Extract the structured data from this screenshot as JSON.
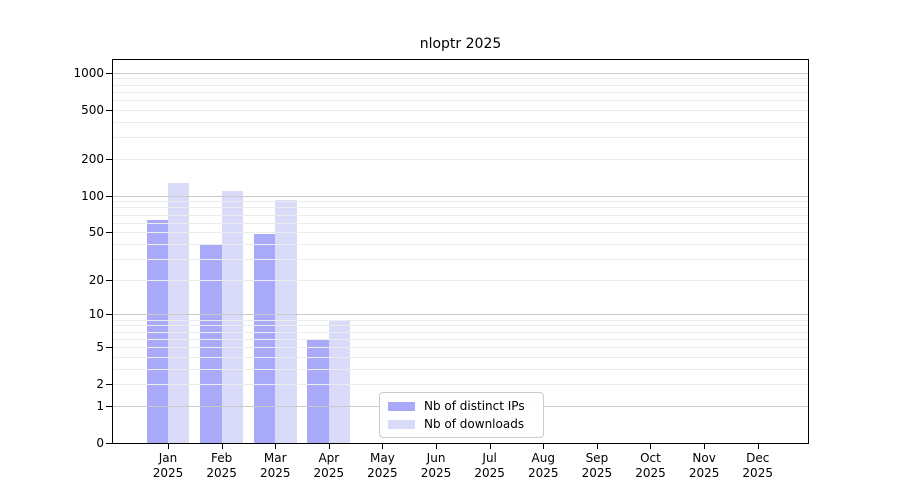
{
  "figure": {
    "background": "#ffffff"
  },
  "chart_data": {
    "type": "bar",
    "title": "nloptr 2025",
    "categories": [
      "Jan 2025",
      "Feb 2025",
      "Mar 2025",
      "Apr 2025",
      "May 2025",
      "Jun 2025",
      "Jul 2025",
      "Aug 2025",
      "Sep 2025",
      "Oct 2025",
      "Nov 2025",
      "Dec 2025"
    ],
    "series": [
      {
        "name": "Nb of distinct IPs",
        "color": "#a9a9f9",
        "values": [
          63,
          40,
          48,
          6,
          0,
          0,
          0,
          0,
          0,
          0,
          0,
          0
        ]
      },
      {
        "name": "Nb of downloads",
        "color": "#dadaf9",
        "values": [
          126,
          110,
          92,
          9,
          0,
          0,
          0,
          0,
          0,
          0,
          0,
          0
        ]
      }
    ],
    "xlabel": "",
    "ylabel": "",
    "yscale": "log1p",
    "ylim": [
      0,
      1300
    ],
    "y_tick_values": [
      0,
      1,
      2,
      5,
      10,
      20,
      50,
      100,
      200,
      500,
      1000
    ],
    "y_tick_labels": [
      "0",
      "1",
      "2",
      "5",
      "10",
      "20",
      "50",
      "100",
      "200",
      "500",
      "1000"
    ],
    "y_major_gridlines": [
      1,
      10,
      100,
      1000
    ],
    "y_minor_gridlines": [
      2,
      3,
      4,
      5,
      6,
      7,
      8,
      9,
      20,
      30,
      40,
      50,
      60,
      70,
      80,
      90,
      200,
      300,
      400,
      500,
      600,
      700,
      800,
      900
    ],
    "grid": true,
    "legend_position": "lower center"
  }
}
